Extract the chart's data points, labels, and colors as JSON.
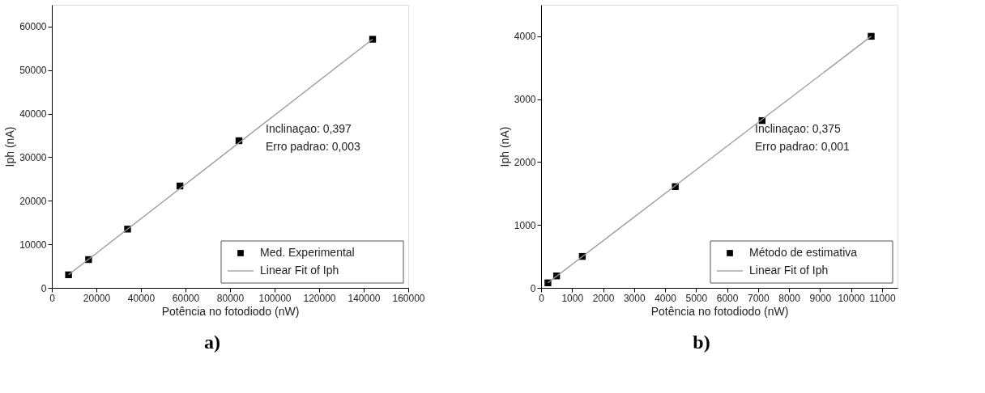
{
  "chart_data": [
    {
      "type": "scatter",
      "xlabel": "Potência no fotodiodo (nW)",
      "ylabel": "Iph (nA)",
      "xlim": [
        0,
        160000
      ],
      "xticks": [
        0,
        20000,
        40000,
        60000,
        80000,
        100000,
        120000,
        140000,
        160000
      ],
      "ylim": [
        0,
        65000
      ],
      "yticks": [
        0,
        10000,
        20000,
        30000,
        40000,
        50000,
        60000
      ],
      "grid": false,
      "legend": "bottom right",
      "annotations": [
        "Inclinaçao: 0,397",
        "Erro padrao: 0,003",
        "a)"
      ],
      "series": [
        {
          "name": "Med. Experimental",
          "color": "#000000",
          "marker": "square",
          "x": [
            7500,
            16500,
            34000,
            57500,
            84000,
            144000
          ],
          "values": [
            3000,
            6500,
            13500,
            23400,
            33800,
            57100
          ]
        },
        {
          "name": "Linear Fit of Iph",
          "type": "line",
          "color": "#999999",
          "line_style": "solid",
          "x": [
            7500,
            144000
          ],
          "values": [
            3000,
            57100
          ]
        }
      ]
    },
    {
      "type": "scatter",
      "xlabel": "Potência no fotodiodo (nW)",
      "ylabel": "Iph (nA)",
      "xlim": [
        0,
        11500
      ],
      "xticks": [
        0,
        1000,
        2000,
        3000,
        4000,
        5000,
        6000,
        7000,
        8000,
        9000,
        10000,
        11000
      ],
      "ylim": [
        0,
        4500
      ],
      "yticks": [
        0,
        1000,
        2000,
        3000,
        4000
      ],
      "grid": false,
      "legend": "bottom right",
      "annotations": [
        "Inclinaçao: 0,375",
        "Erro padrao: 0,001",
        "b)"
      ],
      "series": [
        {
          "name": "Método de estimativa",
          "color": "#000000",
          "marker": "square",
          "x": [
            220,
            500,
            1330,
            4330,
            7130,
            10650
          ],
          "values": [
            80,
            190,
            500,
            1610,
            2660,
            4000
          ]
        },
        {
          "name": "Linear Fit of Iph",
          "type": "line",
          "color": "#999999",
          "line_style": "solid",
          "x": [
            220,
            10650
          ],
          "values": [
            80,
            4000
          ]
        }
      ]
    }
  ]
}
